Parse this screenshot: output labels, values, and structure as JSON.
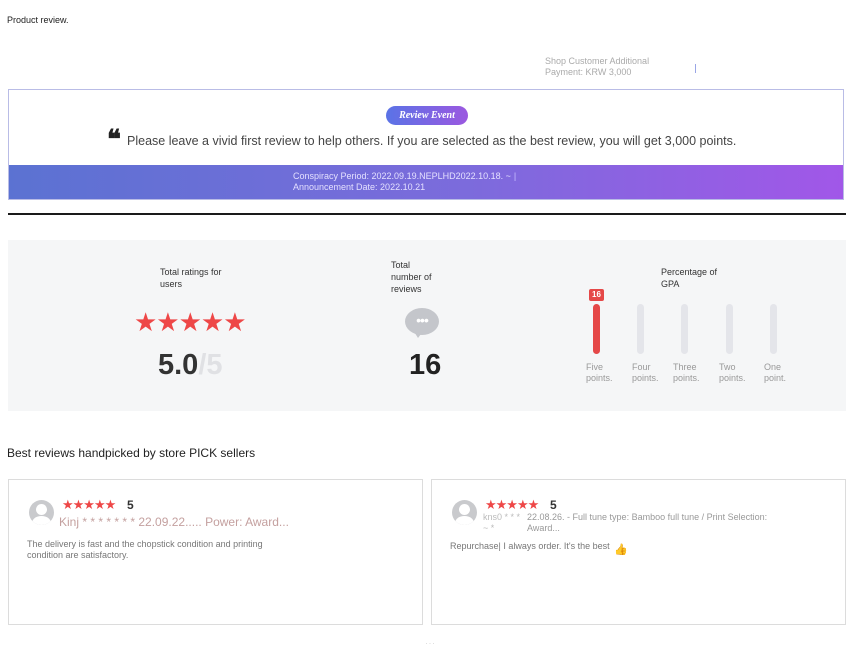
{
  "page": {
    "title": "Product review."
  },
  "shop_fee": {
    "line1": "Shop Customer Additional",
    "line2": "Payment: KRW 3,000"
  },
  "review_event": {
    "badge": "Review Event",
    "quote_mark": "❝",
    "message": "Please leave a vivid first review to help others. If you are selected as the best review, you will get 3,000 points.",
    "period": "Conspiracy Period: 2022.09.19.NEPLHD2022.10.18. ~",
    "period_pipe": "|",
    "announcement": "Announcement Date: 2022.10.21"
  },
  "stats": {
    "total_ratings_label": "Total ratings for users",
    "stars": "★★★★★",
    "score": "5.0",
    "score_max": "/5",
    "total_reviews_label": "Total number of reviews",
    "bubble_icon": "speech-bubble-icon",
    "bubble_dots": "•••",
    "review_count": "16",
    "gpa_label": "Percentage of GPA",
    "gpa_badge": "16",
    "gpa": [
      {
        "label": "Five points.",
        "count": 16,
        "fill": 1.0
      },
      {
        "label": "Four points.",
        "count": 0,
        "fill": 0
      },
      {
        "label": "Three points.",
        "count": 0,
        "fill": 0
      },
      {
        "label": "Two points.",
        "count": 0,
        "fill": 0
      },
      {
        "label": "One point.",
        "count": 0,
        "fill": 0
      }
    ]
  },
  "best_reviews": {
    "title": "Best reviews handpicked by store PICK sellers",
    "items": [
      {
        "stars": "★★★★★",
        "rating": "5",
        "meta": "Kinj * * * * * * * 22.09.22..... Power: Award...",
        "body": "The delivery is fast and the chopstick condition and printing condition are satisfactory."
      },
      {
        "stars": "★★★★★",
        "rating": "5",
        "user": "kns0 * * * ~ *",
        "meta": "22.08.26. - Full tune type: Bamboo full tune / Print Selection: Award...",
        "body": "Repurchase| I always order. It's the best",
        "thumb_icon": "thumbs-up-icon",
        "thumb": "👍"
      }
    ]
  },
  "colors": {
    "accent_red": "#e54848",
    "event_gradient_start": "#5b72d2",
    "event_gradient_end": "#a157e8",
    "star_red": "#ee4747"
  }
}
